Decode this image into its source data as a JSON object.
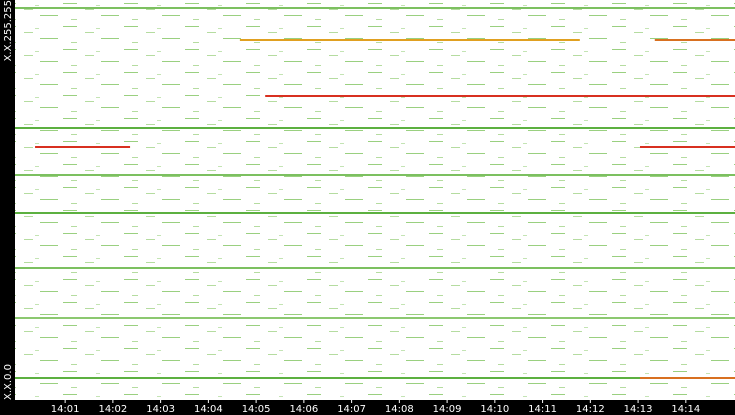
{
  "chart_data": {
    "type": "traffic-map",
    "xlim": [
      -0.05,
      15.03
    ],
    "xticks": [
      {
        "value": 1,
        "label": "14:01"
      },
      {
        "value": 2,
        "label": "14:02"
      },
      {
        "value": 3,
        "label": "14:03"
      },
      {
        "value": 4,
        "label": "14:04"
      },
      {
        "value": 5,
        "label": "14:05"
      },
      {
        "value": 6,
        "label": "14:06"
      },
      {
        "value": 7,
        "label": "14:07"
      },
      {
        "value": 8,
        "label": "14:08"
      },
      {
        "value": 9,
        "label": "14:09"
      },
      {
        "value": 10,
        "label": "14:10"
      },
      {
        "value": 11,
        "label": "14:11"
      },
      {
        "value": 12,
        "label": "14:12"
      },
      {
        "value": 13,
        "label": "14:13"
      },
      {
        "value": 14,
        "label": "14:14"
      }
    ],
    "ylim": [
      0,
      65535
    ],
    "yticks": [
      {
        "value": 0,
        "label": "X.X.0.0"
      },
      {
        "value": 65535,
        "label": "X.X.255.255"
      }
    ],
    "segments": [
      {
        "y": 58982,
        "x": [
          4.66,
          11.78
        ],
        "color": "#e0a020"
      },
      {
        "y": 58982,
        "x": [
          13.35,
          15.03
        ],
        "color": "#d87020"
      },
      {
        "y": 49807,
        "x": [
          5.19,
          15.03
        ],
        "color": "#d83020"
      },
      {
        "y": 41451,
        "x": [
          0.37,
          2.36
        ],
        "color": "#d83020"
      },
      {
        "y": 41451,
        "x": [
          13.04,
          15.03
        ],
        "color": "#d83020"
      },
      {
        "y": 64224,
        "x": [
          -0.05,
          15.03
        ],
        "color": "#7cc060"
      },
      {
        "y": 44564,
        "x": [
          -0.05,
          15.03
        ],
        "color": "#5cb040"
      },
      {
        "y": 36863,
        "x": [
          -0.05,
          15.03
        ],
        "color": "#7cc060"
      },
      {
        "y": 30638,
        "x": [
          -0.05,
          15.03
        ],
        "color": "#5cb040"
      },
      {
        "y": 21627,
        "x": [
          -0.05,
          15.03
        ],
        "color": "#7cc060"
      },
      {
        "y": 13434,
        "x": [
          -0.05,
          15.03
        ],
        "color": "#8cc870"
      },
      {
        "y": 3604,
        "x": [
          -0.05,
          15.03
        ],
        "color": "#5cb040"
      },
      {
        "y": 3604,
        "x": [
          13.04,
          15.03
        ],
        "color": "#d87020"
      }
    ]
  }
}
